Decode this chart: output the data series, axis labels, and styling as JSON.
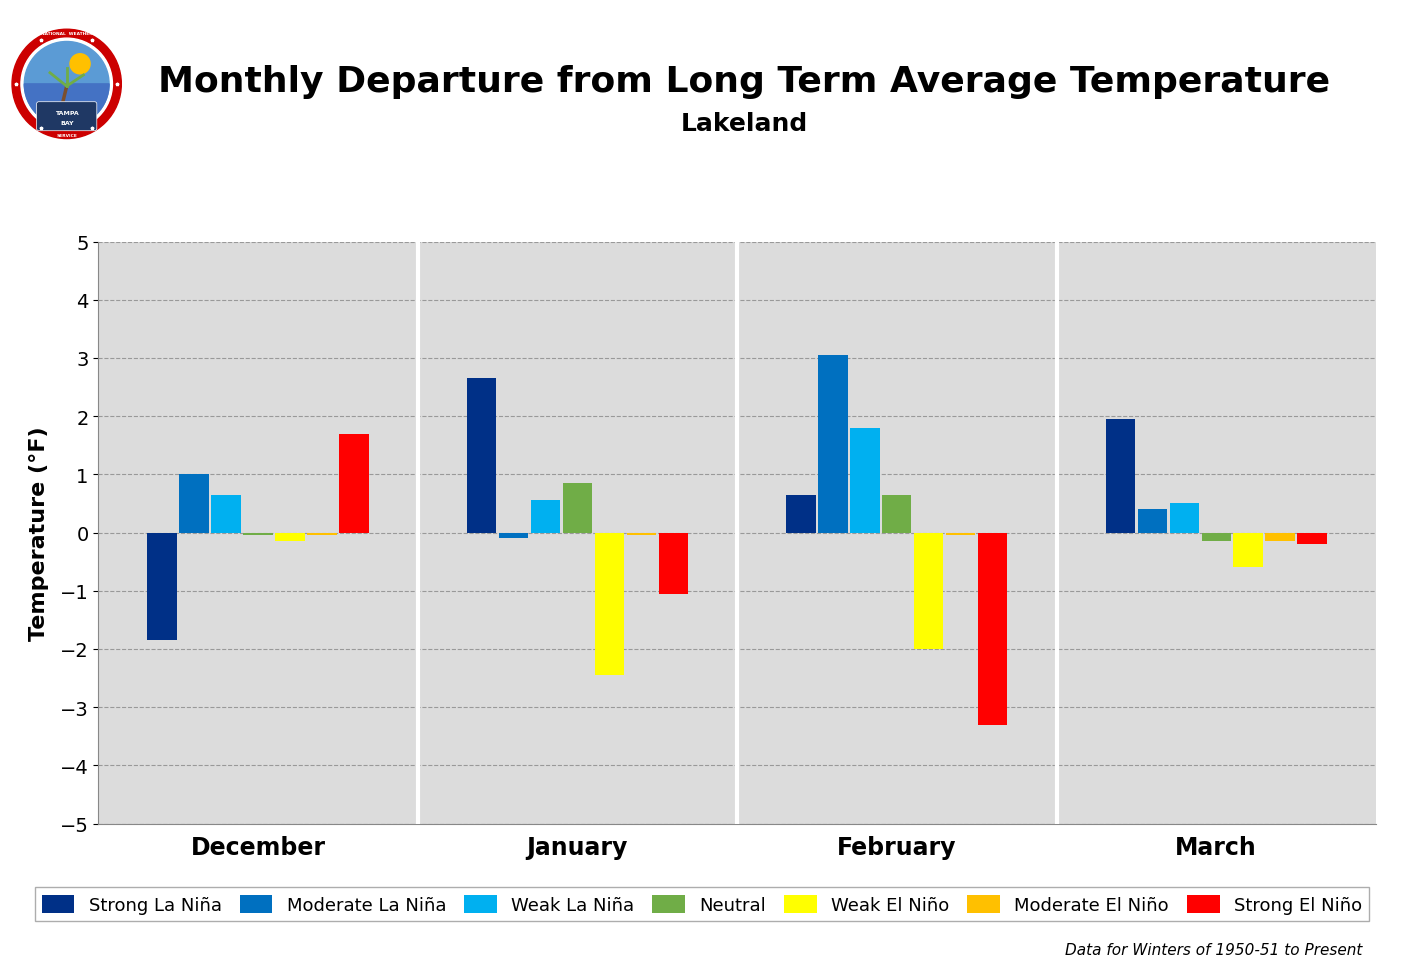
{
  "title": "Monthly Departure from Long Term Average Temperature",
  "subtitle": "Lakeland",
  "ylabel": "Temperature (°F)",
  "footnote": "Data for Winters of 1950-51 to Present",
  "months": [
    "December",
    "January",
    "February",
    "March"
  ],
  "categories": [
    "Strong La Niña",
    "Moderate La Niña",
    "Weak La Niña",
    "Neutral",
    "Weak El Niño",
    "Moderate El Niño",
    "Strong El Niño"
  ],
  "colors": [
    "#003087",
    "#0070C0",
    "#00B0F0",
    "#70AD47",
    "#FFFF00",
    "#FFC000",
    "#FF0000"
  ],
  "values": {
    "December": [
      -1.85,
      1.0,
      0.65,
      -0.05,
      -0.15,
      -0.05,
      1.7
    ],
    "January": [
      2.65,
      -0.1,
      0.55,
      0.85,
      -2.45,
      -0.05,
      -1.05
    ],
    "February": [
      0.65,
      3.05,
      1.8,
      0.65,
      -2.0,
      -0.05,
      -3.3
    ],
    "March": [
      1.95,
      0.4,
      0.5,
      -0.15,
      -0.6,
      -0.15,
      -0.2
    ]
  },
  "ylim": [
    -5,
    5
  ],
  "yticks": [
    -5,
    -4,
    -3,
    -2,
    -1,
    0,
    1,
    2,
    3,
    4,
    5
  ],
  "plot_bg_color": "#DCDCDC",
  "title_fontsize": 26,
  "subtitle_fontsize": 18,
  "axis_fontsize": 16,
  "tick_fontsize": 14,
  "legend_fontsize": 13
}
